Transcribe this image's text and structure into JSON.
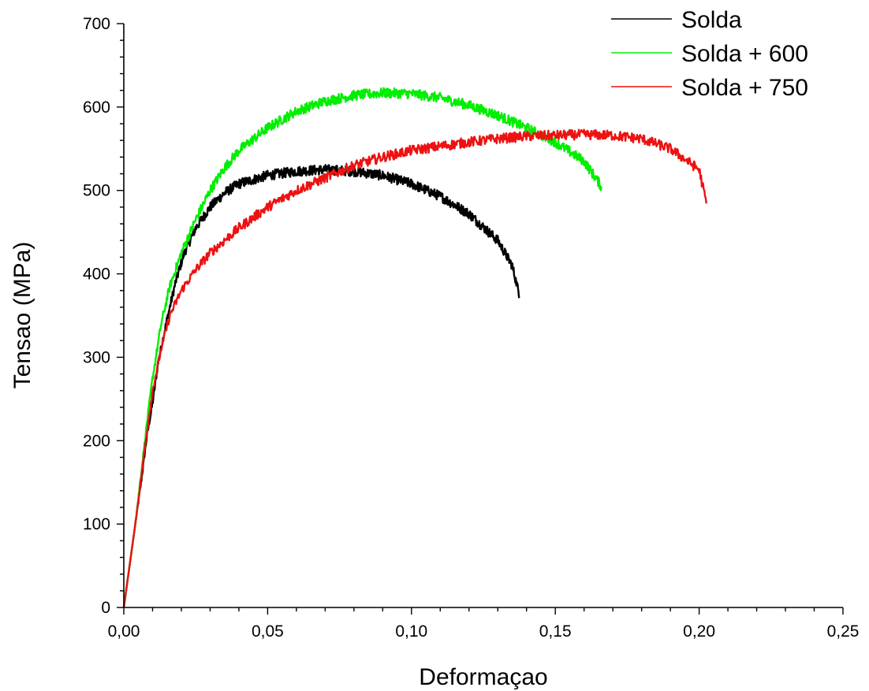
{
  "chart_data": {
    "type": "line",
    "title": "",
    "xlabel": "Deformaçao",
    "ylabel": "Tensao (MPa)",
    "xlim": [
      0,
      0.25
    ],
    "ylim": [
      0,
      700
    ],
    "x_ticks": [
      "0,00",
      "0,05",
      "0,10",
      "0,15",
      "0,20",
      "0,25"
    ],
    "y_ticks": [
      "0",
      "100",
      "200",
      "300",
      "400",
      "500",
      "600",
      "700"
    ],
    "grid": false,
    "legend_position": "top-right",
    "series": [
      {
        "name": "Solda",
        "color": "#000000",
        "points": [
          [
            0,
            0
          ],
          [
            0.002,
            50
          ],
          [
            0.004,
            100
          ],
          [
            0.006,
            150
          ],
          [
            0.008,
            205
          ],
          [
            0.01,
            245
          ],
          [
            0.012,
            295
          ],
          [
            0.015,
            345
          ],
          [
            0.018,
            390
          ],
          [
            0.021,
            425
          ],
          [
            0.025,
            455
          ],
          [
            0.03,
            480
          ],
          [
            0.035,
            497
          ],
          [
            0.04,
            508
          ],
          [
            0.05,
            518
          ],
          [
            0.06,
            523
          ],
          [
            0.07,
            525
          ],
          [
            0.08,
            523
          ],
          [
            0.09,
            518
          ],
          [
            0.1,
            508
          ],
          [
            0.11,
            493
          ],
          [
            0.12,
            472
          ],
          [
            0.13,
            440
          ],
          [
            0.135,
            410
          ],
          [
            0.1375,
            375
          ]
        ]
      },
      {
        "name": "Solda + 600",
        "color": "#00ee00",
        "points": [
          [
            0,
            0
          ],
          [
            0.002,
            50
          ],
          [
            0.004,
            100
          ],
          [
            0.006,
            160
          ],
          [
            0.008,
            220
          ],
          [
            0.01,
            275
          ],
          [
            0.013,
            340
          ],
          [
            0.016,
            385
          ],
          [
            0.02,
            425
          ],
          [
            0.025,
            465
          ],
          [
            0.03,
            500
          ],
          [
            0.035,
            527
          ],
          [
            0.04,
            548
          ],
          [
            0.05,
            575
          ],
          [
            0.06,
            595
          ],
          [
            0.07,
            607
          ],
          [
            0.08,
            614
          ],
          [
            0.09,
            617
          ],
          [
            0.1,
            616
          ],
          [
            0.11,
            611
          ],
          [
            0.12,
            602
          ],
          [
            0.13,
            590
          ],
          [
            0.14,
            575
          ],
          [
            0.15,
            558
          ],
          [
            0.16,
            535
          ],
          [
            0.166,
            505
          ]
        ]
      },
      {
        "name": "Solda + 750",
        "color": "#ee1111",
        "points": [
          [
            0,
            0
          ],
          [
            0.002,
            50
          ],
          [
            0.004,
            100
          ],
          [
            0.006,
            155
          ],
          [
            0.008,
            210
          ],
          [
            0.01,
            260
          ],
          [
            0.013,
            310
          ],
          [
            0.016,
            350
          ],
          [
            0.02,
            380
          ],
          [
            0.025,
            405
          ],
          [
            0.03,
            425
          ],
          [
            0.035,
            440
          ],
          [
            0.04,
            455
          ],
          [
            0.05,
            480
          ],
          [
            0.06,
            500
          ],
          [
            0.07,
            515
          ],
          [
            0.08,
            530
          ],
          [
            0.09,
            540
          ],
          [
            0.1,
            548
          ],
          [
            0.11,
            553
          ],
          [
            0.12,
            558
          ],
          [
            0.13,
            562
          ],
          [
            0.14,
            565
          ],
          [
            0.15,
            566
          ],
          [
            0.16,
            567
          ],
          [
            0.17,
            566
          ],
          [
            0.18,
            562
          ],
          [
            0.19,
            550
          ],
          [
            0.2,
            525
          ],
          [
            0.2025,
            485
          ]
        ]
      }
    ]
  }
}
